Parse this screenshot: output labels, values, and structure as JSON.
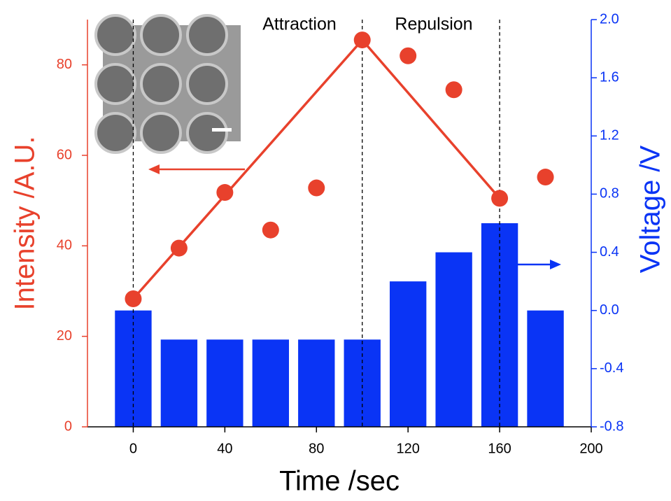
{
  "chart_data": {
    "type": "combo",
    "x_label": "Time /sec",
    "y_label": "Intensity /A.U.",
    "y2_label": "Voltage /V",
    "annotations": [
      "Attraction",
      "Repulsion"
    ],
    "xlim": [
      -20,
      200
    ],
    "xticks": [
      0,
      40,
      80,
      120,
      160,
      200
    ],
    "ylim": [
      0,
      90
    ],
    "yticks": [
      0,
      20,
      40,
      60,
      80
    ],
    "y2lim": [
      -0.8,
      2.0
    ],
    "y2ticks": [
      -0.8,
      -0.4,
      {
        "value": 0,
        "label": "0.0"
      },
      0.4,
      0.8,
      1.2,
      1.6,
      {
        "value": 2,
        "label": "2.0"
      }
    ],
    "left_color": "#e8412c",
    "right_color": "#0a34f5",
    "vlines": [
      0,
      100,
      160
    ],
    "series": [
      {
        "type": "bar",
        "axis": "y2",
        "color": "#0a34f5",
        "x": [
          0,
          20,
          40,
          60,
          80,
          100,
          120,
          140,
          160,
          180
        ],
        "values": [
          0.0,
          -0.2,
          -0.2,
          -0.2,
          -0.2,
          -0.2,
          0.2,
          0.4,
          0.6,
          0.0
        ]
      },
      {
        "type": "line",
        "color": "#e8412c",
        "x": [
          0,
          100,
          160
        ],
        "values": [
          28.3,
          85.5,
          50.5
        ]
      },
      {
        "type": "scatter",
        "color": "#e8412c",
        "x": [
          0,
          20,
          40,
          60,
          80,
          100,
          120,
          140,
          160,
          180
        ],
        "values": [
          28.3,
          39.5,
          51.8,
          43.5,
          52.8,
          85.5,
          82.0,
          74.5,
          50.5,
          55.2
        ]
      }
    ]
  }
}
